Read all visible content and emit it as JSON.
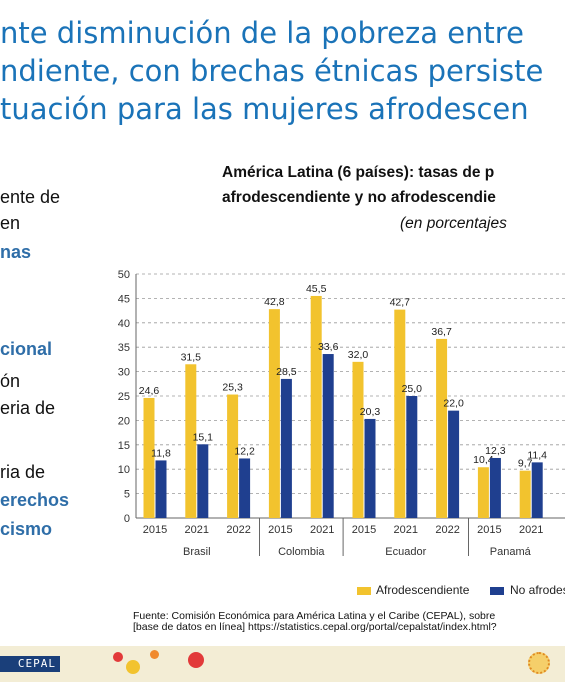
{
  "slide": {
    "title_lines": [
      "nte disminución de la pobreza entre",
      "ndiente, con brechas étnicas persiste",
      "tuación para las mujeres afrodescen"
    ],
    "left_text": {
      "line1": "ente de",
      "line2": "en",
      "line3": "nas",
      "line4": "cional",
      "line5": "ón",
      "line6": "eria de",
      "line7": "ria de",
      "line8": "erechos",
      "line9": "cismo"
    },
    "footer_logo": "CEPAL",
    "brand_colors": {
      "title": "#1a73b8",
      "footer_bg": "#f3edd5",
      "logo": "#1a3f7a"
    }
  },
  "chart_data": {
    "type": "bar",
    "title_lines": [
      "América Latina (6 países): tasas de p",
      "afrodescendiente y no afrodescendie"
    ],
    "subtitle": "(en porcentajes",
    "ylim": [
      0,
      50
    ],
    "yticks": [
      0,
      5,
      10,
      15,
      20,
      25,
      30,
      35,
      40,
      45,
      50
    ],
    "grid": "dashed horizontal",
    "categories": [
      "2015",
      "2021",
      "2022",
      "2015",
      "2021",
      "2015",
      "2021",
      "2022",
      "2015",
      "2021"
    ],
    "groups": [
      {
        "label": "Brasil",
        "span": 3
      },
      {
        "label": "Colombia",
        "span": 2
      },
      {
        "label": "Ecuador",
        "span": 3
      },
      {
        "label": "Panamá",
        "span": 2
      }
    ],
    "series": [
      {
        "name": "Afrodescendiente",
        "color": "#f2c32e",
        "values": [
          24.6,
          31.5,
          25.3,
          42.8,
          45.5,
          32.0,
          42.7,
          36.7,
          10.4,
          9.7
        ]
      },
      {
        "name": "No afrodesc",
        "color": "#1f3f8f",
        "values": [
          11.8,
          15.1,
          12.2,
          28.5,
          33.6,
          20.3,
          25.0,
          22.0,
          12.3,
          11.4
        ]
      }
    ],
    "value_labels": [
      [
        "24,6",
        "31,5",
        "25,3",
        "42,8",
        "45,5",
        "32,0",
        "42,7",
        "36,7",
        "10,4",
        "9,7"
      ],
      [
        "11,8",
        "15,1",
        "12,2",
        "28,5",
        "33,6",
        "20,3",
        "25,0",
        "22,0",
        "12,3",
        "11,4"
      ]
    ],
    "legend_position": "bottom",
    "source_lines": [
      "Fuente: Comisión Económica para América Latina y el Caribe (CEPAL), sobre",
      "[base de datos en línea] https://statistics.cepal.org/portal/cepalstat/index.html?"
    ]
  }
}
